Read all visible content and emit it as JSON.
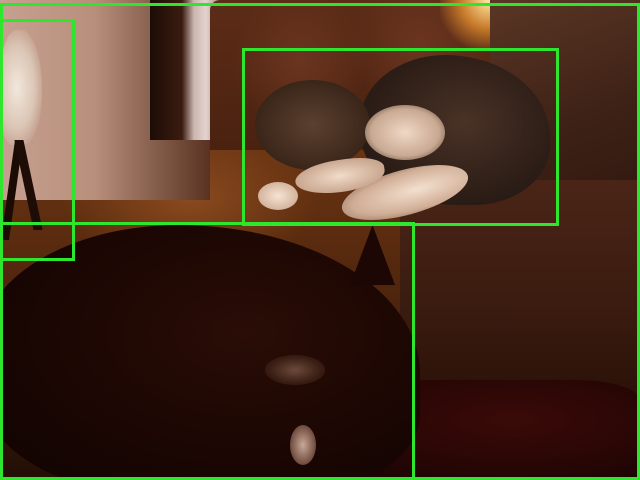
{
  "image": {
    "alt_text": "",
    "detection_boxes": [
      {
        "id": "box-full"
      },
      {
        "id": "box-left"
      },
      {
        "id": "box-tabby-cat"
      },
      {
        "id": "box-black-cat"
      }
    ],
    "box_color": "#2ee62e"
  }
}
